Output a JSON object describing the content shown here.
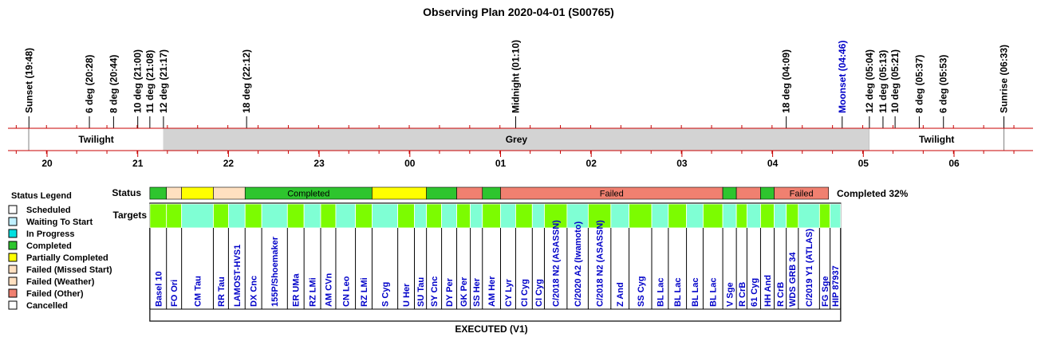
{
  "chart_data": {
    "type": "timeline",
    "title": "Observing Plan 2020-04-01 (S00765)",
    "hour_labels": [
      "20",
      "21",
      "22",
      "23",
      "00",
      "01",
      "02",
      "03",
      "04",
      "05",
      "06"
    ],
    "events": [
      {
        "label": "Sunset (19:48)",
        "t": "19:48",
        "color": "#000000"
      },
      {
        "label": "6 deg (20:28)",
        "t": "20:28",
        "color": "#000000"
      },
      {
        "label": "8 deg (20:44)",
        "t": "20:44",
        "color": "#000000"
      },
      {
        "label": "10 deg (21:00)",
        "t": "21:00",
        "color": "#000000"
      },
      {
        "label": "11 deg (21:08)",
        "t": "21:08",
        "color": "#000000"
      },
      {
        "label": "12 deg (21:17)",
        "t": "21:17",
        "color": "#000000"
      },
      {
        "label": "18 deg (22:12)",
        "t": "22:12",
        "color": "#000000"
      },
      {
        "label": "Midnight (01:10)",
        "t": "01:10",
        "color": "#000000"
      },
      {
        "label": "18 deg (04:09)",
        "t": "04:09",
        "color": "#000000"
      },
      {
        "label": "Moonset (04:46)",
        "t": "04:46",
        "color": "#0000c8"
      },
      {
        "label": "12 deg (05:04)",
        "t": "05:04",
        "color": "#000000"
      },
      {
        "label": "11 deg (05:13)",
        "t": "05:13",
        "color": "#000000"
      },
      {
        "label": "10 deg (05:21)",
        "t": "05:21",
        "color": "#000000"
      },
      {
        "label": "8 deg (05:37)",
        "t": "05:37",
        "color": "#000000"
      },
      {
        "label": "6 deg (05:53)",
        "t": "05:53",
        "color": "#000000"
      },
      {
        "label": "Sunrise (06:33)",
        "t": "06:33",
        "color": "#000000"
      }
    ],
    "periods": [
      {
        "label": "Twilight",
        "start": "19:48",
        "end": "21:17",
        "color": "#ffffff"
      },
      {
        "label": "Grey",
        "start": "21:17",
        "end": "05:04",
        "color": "#d3d3d3"
      },
      {
        "label": "Twilight",
        "start": "05:04",
        "end": "06:33",
        "color": "#ffffff"
      }
    ],
    "status_row_label": "Status",
    "targets_row_label": "Targets",
    "status_segments": [
      {
        "start": "21:08",
        "end": "21:19",
        "status": "Completed",
        "color": "#2ec52e",
        "label": ""
      },
      {
        "start": "21:19",
        "end": "21:29",
        "status": "Failed (Weather)",
        "color": "#ffe0c0",
        "label": ""
      },
      {
        "start": "21:29",
        "end": "21:50",
        "status": "Partially Completed",
        "color": "#ffff00",
        "label": ""
      },
      {
        "start": "21:50",
        "end": "22:11",
        "status": "Failed (Weather)",
        "color": "#ffe0c0",
        "label": ""
      },
      {
        "start": "22:11",
        "end": "23:35",
        "status": "Completed",
        "color": "#2ec52e",
        "label": "Completed"
      },
      {
        "start": "23:35",
        "end": "00:11",
        "status": "Partially Completed",
        "color": "#ffff00",
        "label": ""
      },
      {
        "start": "00:11",
        "end": "00:31",
        "status": "Completed",
        "color": "#2ec52e",
        "label": ""
      },
      {
        "start": "00:31",
        "end": "00:48",
        "status": "Failed (Other)",
        "color": "#f08070",
        "label": ""
      },
      {
        "start": "00:48",
        "end": "01:00",
        "status": "Completed",
        "color": "#2ec52e",
        "label": ""
      },
      {
        "start": "01:00",
        "end": "03:27",
        "status": "Failed (Other)",
        "color": "#f08070",
        "label": "Failed"
      },
      {
        "start": "03:27",
        "end": "03:36",
        "status": "Completed",
        "color": "#2ec52e",
        "label": ""
      },
      {
        "start": "03:36",
        "end": "03:52",
        "status": "Failed (Other)",
        "color": "#f08070",
        "label": ""
      },
      {
        "start": "03:52",
        "end": "04:01",
        "status": "Completed",
        "color": "#2ec52e",
        "label": ""
      },
      {
        "start": "04:01",
        "end": "04:37",
        "status": "Failed (Other)",
        "color": "#f08070",
        "label": "Failed"
      }
    ],
    "summary": "Completed 32%",
    "targets": [
      {
        "name": "Basel 10",
        "start": "21:08",
        "end": "21:19",
        "color": "#7cfc00"
      },
      {
        "name": "FO Ori",
        "start": "21:19",
        "end": "21:29",
        "color": "#7cfc00"
      },
      {
        "name": "CM Tau",
        "start": "21:29",
        "end": "21:50",
        "color": "#7fffd4"
      },
      {
        "name": "RR Tau",
        "start": "21:50",
        "end": "22:00",
        "color": "#7cfc00"
      },
      {
        "name": "LAMOST-HVS1",
        "start": "22:00",
        "end": "22:11",
        "color": "#7fffd4"
      },
      {
        "name": "DX Cnc",
        "start": "22:11",
        "end": "22:22",
        "color": "#7cfc00"
      },
      {
        "name": "155P/Shoemaker",
        "start": "22:22",
        "end": "22:39",
        "color": "#7fffd4"
      },
      {
        "name": "ER UMa",
        "start": "22:39",
        "end": "22:50",
        "color": "#7cfc00"
      },
      {
        "name": "RZ LMi",
        "start": "22:50",
        "end": "23:01",
        "color": "#7fffd4"
      },
      {
        "name": "AM CVn",
        "start": "23:01",
        "end": "23:11",
        "color": "#7cfc00"
      },
      {
        "name": "CN Leo",
        "start": "23:11",
        "end": "23:24",
        "color": "#7fffd4"
      },
      {
        "name": "RZ LMi",
        "start": "23:24",
        "end": "23:35",
        "color": "#7cfc00"
      },
      {
        "name": "S Cyg",
        "start": "23:35",
        "end": "23:52",
        "color": "#7fffd4"
      },
      {
        "name": "U Her",
        "start": "23:52",
        "end": "24:03",
        "color": "#7cfc00"
      },
      {
        "name": "SU Tau",
        "start": "24:03",
        "end": "24:11",
        "color": "#7fffd4"
      },
      {
        "name": "SY Cnc",
        "start": "24:11",
        "end": "24:21",
        "color": "#7cfc00"
      },
      {
        "name": "DY Per",
        "start": "24:21",
        "end": "24:31",
        "color": "#7fffd4"
      },
      {
        "name": "GK Per",
        "start": "24:31",
        "end": "24:40",
        "color": "#7cfc00"
      },
      {
        "name": "SS Her",
        "start": "24:40",
        "end": "24:48",
        "color": "#7fffd4"
      },
      {
        "name": "AM Her",
        "start": "24:48",
        "end": "25:00",
        "color": "#7cfc00"
      },
      {
        "name": "CY Lyr",
        "start": "25:00",
        "end": "25:10",
        "color": "#7fffd4"
      },
      {
        "name": "CI Cyg",
        "start": "25:10",
        "end": "25:21",
        "color": "#7cfc00"
      },
      {
        "name": "CI Cyg",
        "start": "25:21",
        "end": "25:29",
        "color": "#7fffd4"
      },
      {
        "name": "C/2018 N2 (ASASSN)",
        "start": "25:29",
        "end": "25:44",
        "color": "#7cfc00"
      },
      {
        "name": "C/2020 A2 (Iwamoto)",
        "start": "25:44",
        "end": "25:58",
        "color": "#7fffd4"
      },
      {
        "name": "C/2018 N2 (ASASSN)",
        "start": "25:58",
        "end": "26:13",
        "color": "#7cfc00"
      },
      {
        "name": "Z And",
        "start": "26:13",
        "end": "26:25",
        "color": "#7fffd4"
      },
      {
        "name": "SS Cyg",
        "start": "26:25",
        "end": "26:40",
        "color": "#7cfc00"
      },
      {
        "name": "BL Lac",
        "start": "26:40",
        "end": "26:51",
        "color": "#7fffd4"
      },
      {
        "name": "BL Lac",
        "start": "26:51",
        "end": "27:03",
        "color": "#7cfc00"
      },
      {
        "name": "BL Lac",
        "start": "27:03",
        "end": "27:14",
        "color": "#7fffd4"
      },
      {
        "name": "BL Lac",
        "start": "27:14",
        "end": "27:27",
        "color": "#7cfc00"
      },
      {
        "name": "V Sge",
        "start": "27:27",
        "end": "27:36",
        "color": "#7fffd4"
      },
      {
        "name": "R CrB",
        "start": "27:36",
        "end": "27:43",
        "color": "#7cfc00"
      },
      {
        "name": "61 Cyg",
        "start": "27:43",
        "end": "27:52",
        "color": "#7fffd4"
      },
      {
        "name": "HH And",
        "start": "27:52",
        "end": "28:01",
        "color": "#7cfc00"
      },
      {
        "name": "R CrB",
        "start": "28:01",
        "end": "28:09",
        "color": "#7fffd4"
      },
      {
        "name": "WDS GRB 34",
        "start": "28:09",
        "end": "28:17",
        "color": "#7cfc00"
      },
      {
        "name": "C/2019 Y1 (ATLAS)",
        "start": "28:17",
        "end": "28:31",
        "color": "#7fffd4"
      },
      {
        "name": "FG Sge",
        "start": "28:31",
        "end": "28:38",
        "color": "#7cfc00"
      },
      {
        "name": "HIP 87937",
        "start": "28:38",
        "end": "28:45",
        "color": "#7fffd4"
      }
    ],
    "footer": "EXECUTED (V1)"
  },
  "legend": {
    "title": "Status Legend",
    "items": [
      {
        "label": "Scheduled",
        "color": "#ffffff"
      },
      {
        "label": "Waiting To Start",
        "color": "#c0f0ff"
      },
      {
        "label": "In Progress",
        "color": "#00e0e0"
      },
      {
        "label": "Completed",
        "color": "#2ec52e"
      },
      {
        "label": "Partially Completed",
        "color": "#ffff00"
      },
      {
        "label": "Failed (Missed Start)",
        "color": "#ffe0c0"
      },
      {
        "label": "Failed (Weather)",
        "color": "#ffe0c0"
      },
      {
        "label": "Failed (Other)",
        "color": "#f08070"
      },
      {
        "label": "Cancelled",
        "color": "#ffffff"
      }
    ]
  }
}
